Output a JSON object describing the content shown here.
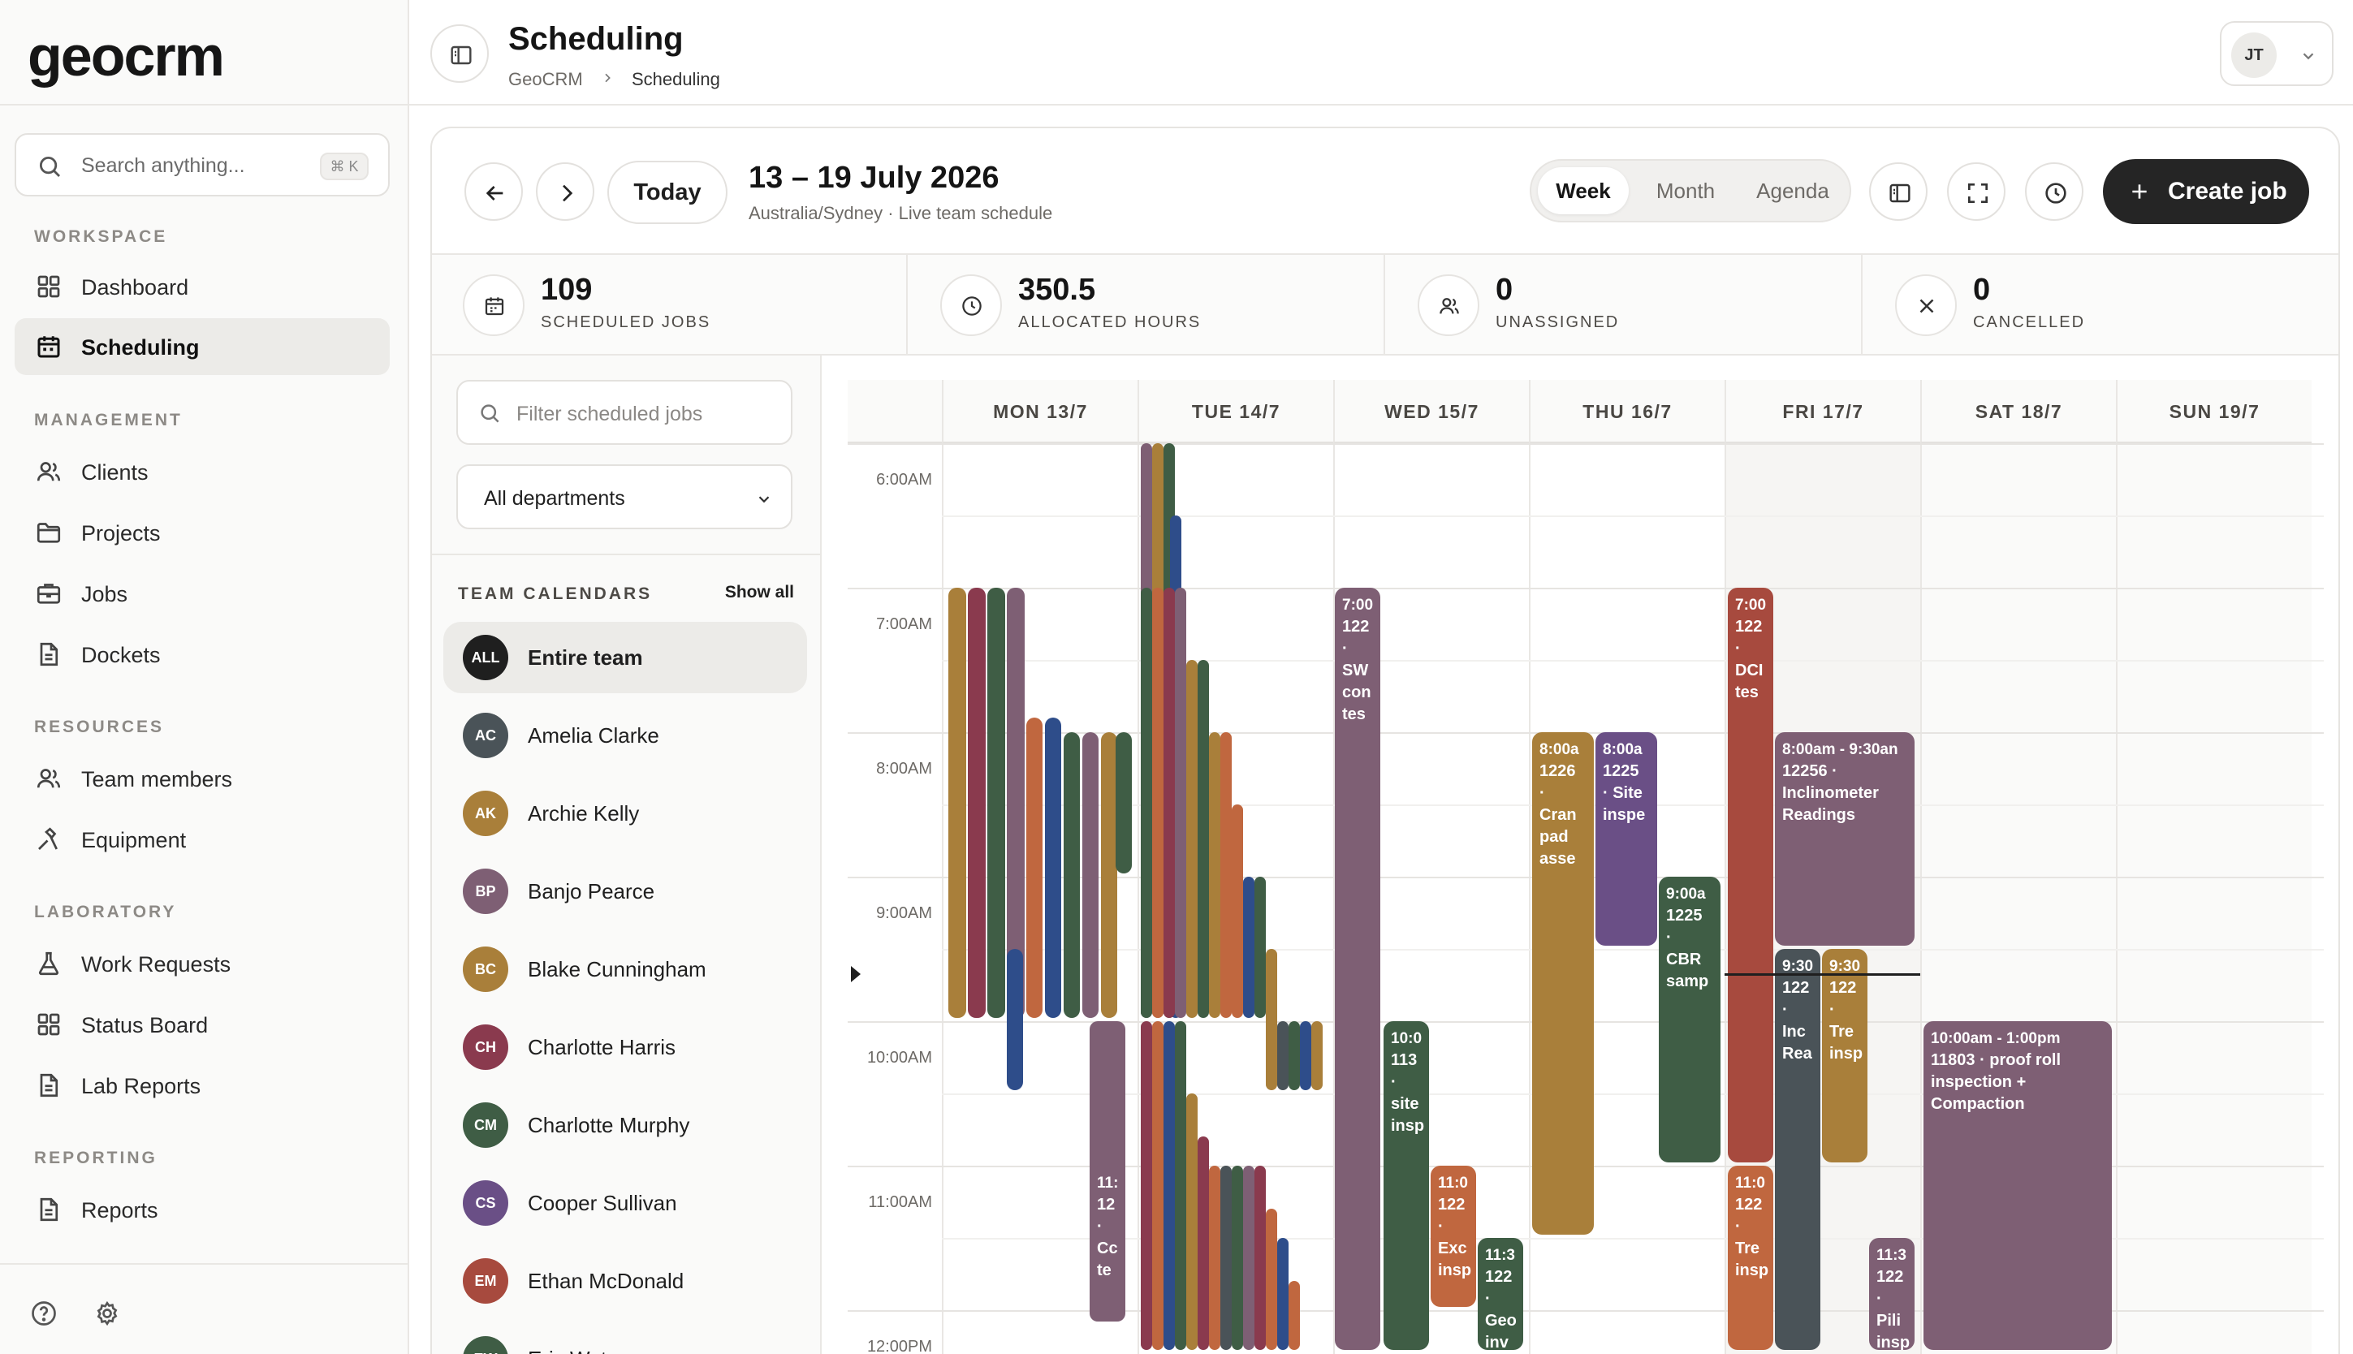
{
  "app": {
    "logo": "geocrm",
    "search_placeholder": "Search anything...",
    "search_shortcut": "⌘ K"
  },
  "sidebar": {
    "sections": [
      {
        "title": "WORKSPACE",
        "items": [
          {
            "label": "Dashboard",
            "icon": "grid-icon",
            "active": false
          },
          {
            "label": "Scheduling",
            "icon": "calendar-icon",
            "active": true
          }
        ]
      },
      {
        "title": "MANAGEMENT",
        "items": [
          {
            "label": "Clients",
            "icon": "users-icon"
          },
          {
            "label": "Projects",
            "icon": "folder-icon"
          },
          {
            "label": "Jobs",
            "icon": "briefcase-icon"
          },
          {
            "label": "Dockets",
            "icon": "document-icon"
          }
        ]
      },
      {
        "title": "RESOURCES",
        "items": [
          {
            "label": "Team members",
            "icon": "users-icon"
          },
          {
            "label": "Equipment",
            "icon": "tool-icon"
          }
        ]
      },
      {
        "title": "LABORATORY",
        "items": [
          {
            "label": "Work Requests",
            "icon": "flask-icon"
          },
          {
            "label": "Status Board",
            "icon": "grid-icon"
          },
          {
            "label": "Lab Reports",
            "icon": "document-icon"
          }
        ]
      },
      {
        "title": "REPORTING",
        "items": [
          {
            "label": "Reports",
            "icon": "document-icon"
          }
        ]
      }
    ]
  },
  "header": {
    "title": "Scheduling",
    "breadcrumb": [
      "GeoCRM",
      "Scheduling"
    ],
    "user_initials": "JT"
  },
  "toolbar": {
    "today_label": "Today",
    "range_title": "13 – 19 July 2026",
    "range_subtitle": "Australia/Sydney · Live team schedule",
    "views": [
      "Week",
      "Month",
      "Agenda"
    ],
    "active_view": "Week",
    "create_label": "Create job"
  },
  "stats": [
    {
      "value": "109",
      "label": "SCHEDULED JOBS",
      "icon": "calendar-icon"
    },
    {
      "value": "350.5",
      "label": "ALLOCATED HOURS",
      "icon": "clock-icon"
    },
    {
      "value": "0",
      "label": "UNASSIGNED",
      "icon": "users-icon"
    },
    {
      "value": "0",
      "label": "CANCELLED",
      "icon": "x-icon"
    }
  ],
  "filters": {
    "search_placeholder": "Filter scheduled jobs",
    "department": "All departments",
    "team_heading": "TEAM CALENDARS",
    "show_all": "Show all"
  },
  "members": [
    {
      "initials": "ALL",
      "name": "Entire team",
      "color": "#1f1f1f",
      "active": true
    },
    {
      "initials": "AC",
      "name": "Amelia Clarke",
      "color": "#4a5358"
    },
    {
      "initials": "AK",
      "name": "Archie Kelly",
      "color": "#a97f3a"
    },
    {
      "initials": "BP",
      "name": "Banjo Pearce",
      "color": "#7e5f74"
    },
    {
      "initials": "BC",
      "name": "Blake Cunningham",
      "color": "#a97f3a"
    },
    {
      "initials": "CH",
      "name": "Charlotte Harris",
      "color": "#8a3a4e"
    },
    {
      "initials": "CM",
      "name": "Charlotte Murphy",
      "color": "#3f5d45"
    },
    {
      "initials": "CS",
      "name": "Cooper Sullivan",
      "color": "#6a4f86"
    },
    {
      "initials": "EM",
      "name": "Ethan McDonald",
      "color": "#a74a3e"
    },
    {
      "initials": "EW",
      "name": "Eric Watson",
      "color": "#3f5d45"
    }
  ],
  "calendar": {
    "days": [
      "MON 13/7",
      "TUE 14/7",
      "WED 15/7",
      "THU 16/7",
      "FRI 17/7",
      "SAT 18/7",
      "SUN 19/7"
    ],
    "hours": [
      "6:00AM",
      "7:00AM",
      "8:00AM",
      "9:00AM",
      "10:00AM",
      "11:00AM",
      "12:00PM"
    ],
    "today": "FRI 17/7",
    "events": [
      {
        "day": 2,
        "lines": [
          "7:00",
          "122",
          "·",
          "SW",
          "con",
          "tes"
        ],
        "color": "#7e5f74"
      },
      {
        "day": 2,
        "lines": [
          "10:0",
          "113",
          "·",
          "site",
          "insp"
        ],
        "color": "#3f5d45"
      },
      {
        "day": 2,
        "lines": [
          "11:0",
          "122",
          "·",
          "Exc",
          "insp"
        ],
        "color": "#c0673f"
      },
      {
        "day": 2,
        "lines": [
          "11:3",
          "122",
          "·",
          "Geo",
          "inv"
        ],
        "color": "#3f5d45"
      },
      {
        "day": 3,
        "lines": [
          "8:00a",
          "1226",
          "·",
          "Cran",
          "pad",
          "asse"
        ],
        "color": "#a97f3a"
      },
      {
        "day": 3,
        "lines": [
          "8:00a",
          "1225",
          "· Site",
          "inspe"
        ],
        "color": "#6a4f86"
      },
      {
        "day": 3,
        "lines": [
          "9:00a",
          "1225",
          "·",
          "CBR",
          "samp"
        ],
        "color": "#3f5d45"
      },
      {
        "day": 4,
        "lines": [
          "7:00",
          "122",
          "·",
          "DCI",
          "tes"
        ],
        "color": "#a74a3e"
      },
      {
        "day": 4,
        "lines": [
          "8:00am - 9:30an",
          "12256 ·",
          "Inclinometer",
          "Readings"
        ],
        "color": "#7e5f74"
      },
      {
        "day": 4,
        "lines": [
          "9:30",
          "122",
          "·",
          "Inc",
          "Rea"
        ],
        "color": "#4a5358"
      },
      {
        "day": 4,
        "lines": [
          "9:30",
          "122",
          "·",
          "Tre",
          "insp"
        ],
        "color": "#a97f3a"
      },
      {
        "day": 4,
        "lines": [
          "11:0",
          "122",
          "·",
          "Tre",
          "insp"
        ],
        "color": "#c0673f"
      },
      {
        "day": 4,
        "lines": [
          "11:3",
          "122",
          "·",
          "Pili",
          "insp"
        ],
        "color": "#7e5f74"
      },
      {
        "day": 5,
        "lines": [
          "10:00am - 1:00pm",
          "11803 · proof roll",
          "inspection +",
          "Compaction"
        ],
        "color": "#7e5f74"
      },
      {
        "day": 0,
        "lines": [
          "11:",
          "12",
          "·",
          "Cc",
          "te"
        ],
        "color": "#7e5f74"
      }
    ]
  },
  "colors": {
    "mustard": "#a97f3a",
    "plum": "#8a3a4e",
    "forest": "#3f5d45",
    "mauve": "#7e5f74",
    "rust": "#c0673f",
    "navy": "#2e4d8a",
    "slate": "#4a5358",
    "violet": "#6a4f86",
    "brick": "#a74a3e",
    "dark_button": "#252525"
  }
}
